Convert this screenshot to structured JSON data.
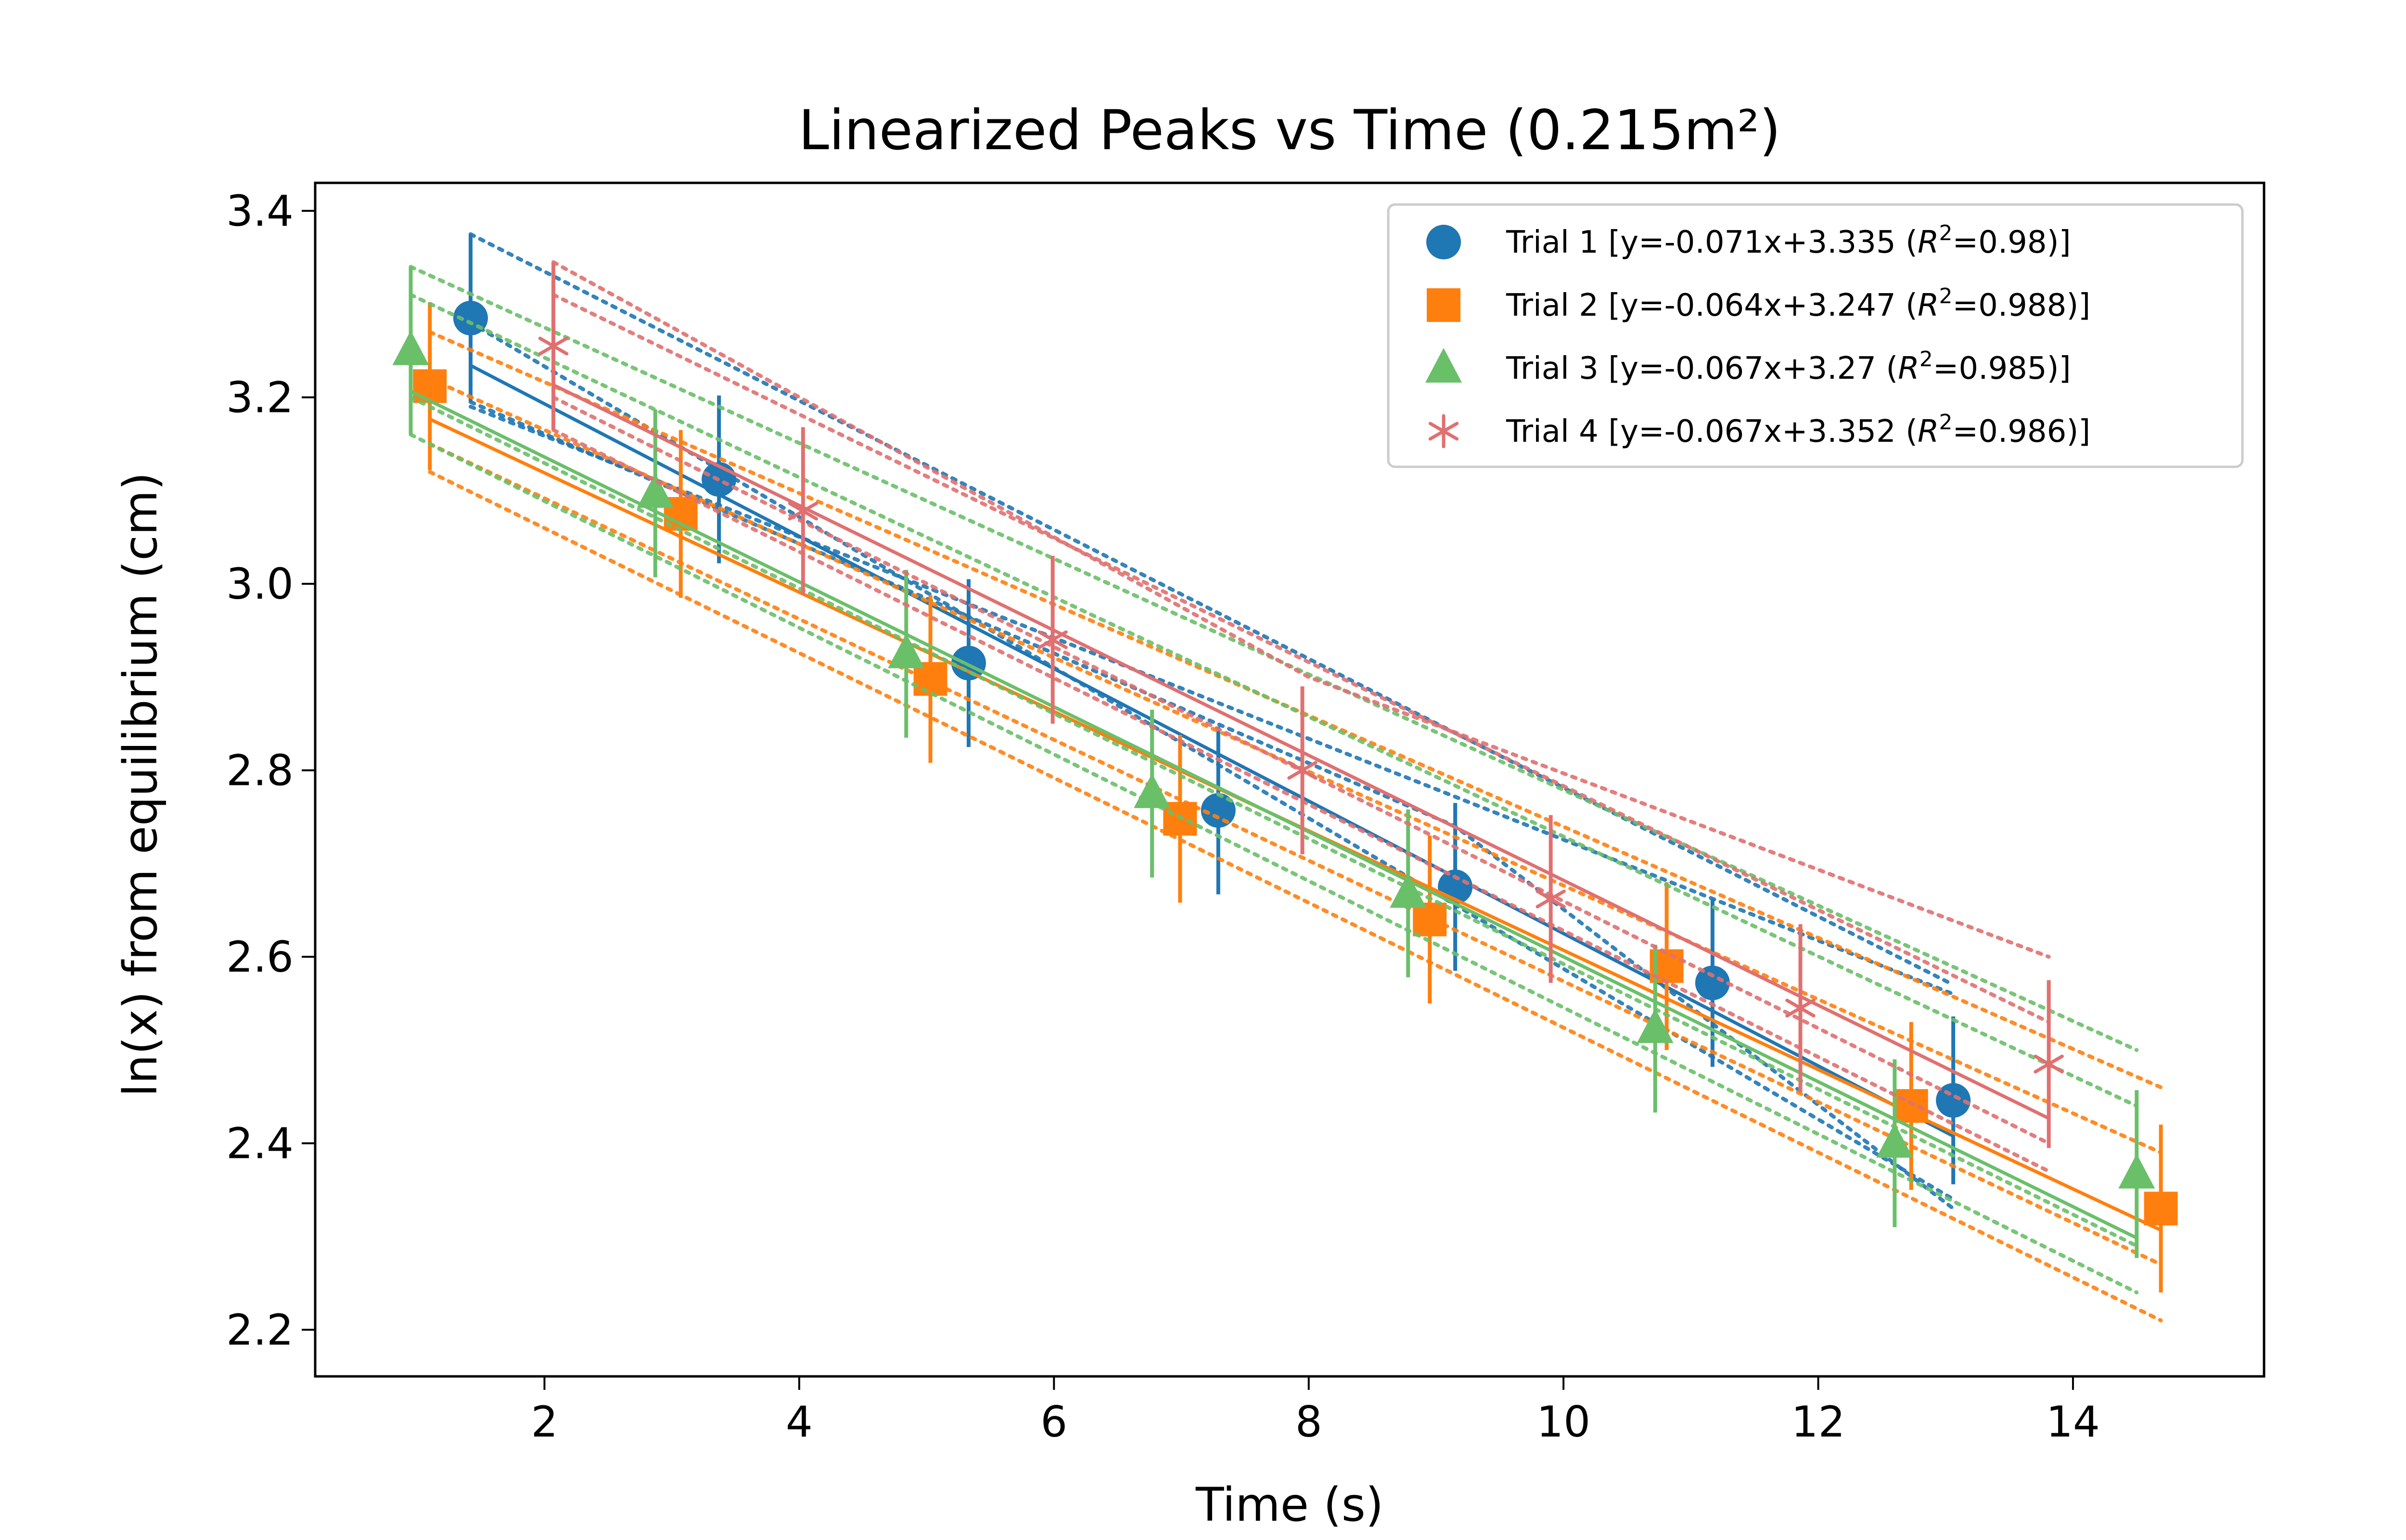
{
  "chart_data": {
    "type": "scatter",
    "title": "Linearized Peaks vs Time (0.215m²)",
    "xlabel": "Time (s)",
    "ylabel": "ln(x) from equilibrium (cm)",
    "xlim": [
      0.2,
      15.5
    ],
    "ylim": [
      2.15,
      3.43
    ],
    "xticks": [
      2,
      4,
      6,
      8,
      10,
      12,
      14
    ],
    "yticks": [
      2.2,
      2.4,
      2.6,
      2.8,
      3.0,
      3.2,
      3.4
    ],
    "xtick_labels": [
      "2",
      "4",
      "6",
      "8",
      "10",
      "12",
      "14"
    ],
    "ytick_labels": [
      "2.2",
      "2.4",
      "2.6",
      "2.8",
      "3.0",
      "3.2",
      "3.4"
    ],
    "grid": false,
    "legend_position": "top-right",
    "error_bar": 0.09,
    "series": [
      {
        "name": "Trial 1",
        "legend_prefix": "Trial 1 [y=-0.071x+3.335 (",
        "legend_suffix": "=0.98)]",
        "color": "#1f77b4",
        "marker": "circle",
        "x": [
          1.42,
          3.37,
          5.33,
          7.29,
          9.15,
          11.17,
          13.06
        ],
        "y": [
          3.285,
          3.112,
          2.915,
          2.757,
          2.675,
          2.572,
          2.446
        ],
        "fit": {
          "slope": -0.071,
          "intercept": 3.335,
          "r2": "0.98"
        },
        "bound_upper": {
          "x": [
            1.42,
            9.15,
            13.06
          ],
          "y": [
            3.375,
            2.84,
            2.57
          ]
        },
        "bound_lower": {
          "x": [
            1.42,
            9.15,
            13.06
          ],
          "y": [
            3.195,
            2.74,
            2.33
          ]
        },
        "bound_mid_upper": {
          "x": [
            1.42,
            13.06
          ],
          "y": [
            3.28,
            2.34
          ]
        },
        "bound_mid_lower": {
          "x": [
            1.42,
            13.06
          ],
          "y": [
            3.19,
            2.56
          ]
        }
      },
      {
        "name": "Trial 2",
        "legend_prefix": "Trial 2 [y=-0.064x+3.247 (",
        "legend_suffix": "=0.988)]",
        "color": "#ff7f0e",
        "marker": "square",
        "x": [
          1.1,
          3.07,
          5.03,
          6.99,
          8.95,
          10.81,
          12.73,
          14.69
        ],
        "y": [
          3.212,
          3.075,
          2.898,
          2.748,
          2.64,
          2.59,
          2.44,
          2.33
        ],
        "fit": {
          "slope": -0.064,
          "intercept": 3.247,
          "r2": "0.988"
        },
        "bound_upper": {
          "x": [
            1.1,
            14.69
          ],
          "y": [
            3.27,
            2.46
          ]
        },
        "bound_lower": {
          "x": [
            1.1,
            14.69
          ],
          "y": [
            3.12,
            2.21
          ]
        },
        "bound_mid_upper": {
          "x": [
            1.1,
            14.69
          ],
          "y": [
            3.22,
            2.39
          ]
        },
        "bound_mid_lower": {
          "x": [
            1.1,
            14.69
          ],
          "y": [
            3.15,
            2.27
          ]
        }
      },
      {
        "name": "Trial 3",
        "legend_prefix": "Trial 3 [y=-0.067x+3.27 (",
        "legend_suffix": "=0.985)]",
        "color": "#6abf69",
        "marker": "triangle",
        "x": [
          0.95,
          2.87,
          4.84,
          6.77,
          8.78,
          10.72,
          12.6,
          14.5
        ],
        "y": [
          3.25,
          3.097,
          2.925,
          2.775,
          2.668,
          2.523,
          2.4,
          2.367
        ],
        "fit": {
          "slope": -0.067,
          "intercept": 3.27,
          "r2": "0.985"
        },
        "bound_upper": {
          "x": [
            0.95,
            14.5
          ],
          "y": [
            3.34,
            2.5
          ]
        },
        "bound_lower": {
          "x": [
            0.95,
            14.5
          ],
          "y": [
            3.16,
            2.24
          ]
        },
        "bound_mid_upper": {
          "x": [
            0.95,
            14.5
          ],
          "y": [
            3.31,
            2.44
          ]
        },
        "bound_mid_lower": {
          "x": [
            0.95,
            14.5
          ],
          "y": [
            3.2,
            2.29
          ]
        }
      },
      {
        "name": "Trial 4",
        "legend_prefix": "Trial 4 [y=-0.067x+3.352 (",
        "legend_suffix": "=0.986)]",
        "color": "#e07070",
        "marker": "star",
        "x": [
          2.07,
          4.03,
          5.99,
          7.95,
          9.9,
          11.86,
          13.81
        ],
        "y": [
          3.255,
          3.078,
          2.94,
          2.8,
          2.662,
          2.545,
          2.485
        ],
        "fit": {
          "slope": -0.067,
          "intercept": 3.352,
          "r2": "0.986"
        },
        "bound_upper": {
          "x": [
            2.07,
            8.0,
            13.81
          ],
          "y": [
            3.345,
            2.9,
            2.6
          ]
        },
        "bound_lower": {
          "x": [
            2.07,
            13.81
          ],
          "y": [
            3.165,
            2.37
          ]
        },
        "bound_mid_upper": {
          "x": [
            2.07,
            13.81
          ],
          "y": [
            3.31,
            2.53
          ]
        },
        "bound_mid_lower": {
          "x": [
            2.07,
            13.81
          ],
          "y": [
            3.2,
            2.4
          ]
        }
      }
    ]
  }
}
